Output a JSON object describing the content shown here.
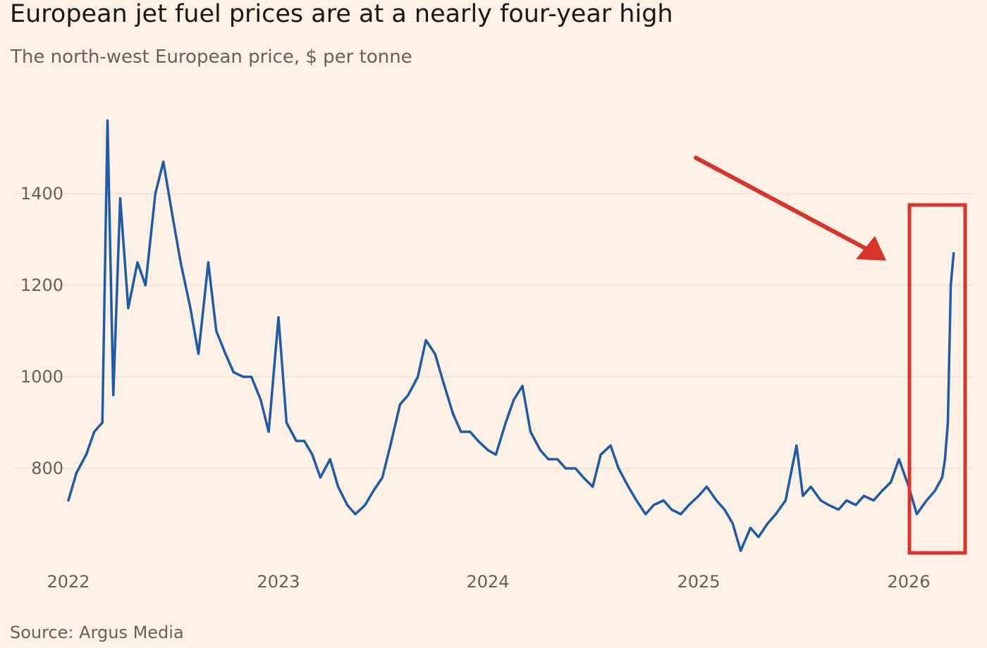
{
  "header": {
    "title": "European jet fuel prices are at a nearly four-year high",
    "subtitle": "The north-west European price, $ per tonne"
  },
  "footer": {
    "source": "Source: Argus Media"
  },
  "colors": {
    "background": "#fdf1e5",
    "line": "#1f5aa6",
    "annotation": "#d9342b",
    "gridline": "#efe2d5",
    "text": "#66605c"
  },
  "chart_data": {
    "type": "line",
    "title": "European jet fuel prices are at a nearly four-year high",
    "subtitle": "The north-west European price, $ per tonne",
    "xlabel": "",
    "ylabel": "",
    "x_ticks": [
      "2022",
      "2023",
      "2024",
      "2025",
      "2026"
    ],
    "y_ticks": [
      800,
      1000,
      1200,
      1400
    ],
    "xlim": [
      "2022-01-01",
      "2026-03-20"
    ],
    "ylim": [
      600,
      1600
    ],
    "grid": "horizontal",
    "legend": "none",
    "annotations": [
      {
        "type": "arrow",
        "color": "#d9342b",
        "points_to": "latest spike"
      },
      {
        "type": "box",
        "color": "#d9342b",
        "highlights": "2026 spike"
      }
    ],
    "series": [
      {
        "x": [
          "2022-01-01",
          "2022-01-15",
          "2022-02-01",
          "2022-02-15",
          "2022-03-01",
          "2022-03-10",
          "2022-03-20",
          "2022-04-01",
          "2022-04-15",
          "2022-05-01",
          "2022-05-15",
          "2022-06-01",
          "2022-06-15",
          "2022-07-01",
          "2022-07-15",
          "2022-08-01",
          "2022-08-15",
          "2022-09-01",
          "2022-09-15",
          "2022-10-01",
          "2022-10-15",
          "2022-11-01",
          "2022-11-15",
          "2022-12-01",
          "2022-12-15",
          "2023-01-01",
          "2023-01-15",
          "2023-02-01",
          "2023-02-15",
          "2023-03-01",
          "2023-03-15",
          "2023-04-01",
          "2023-04-15",
          "2023-05-01",
          "2023-05-15",
          "2023-06-01",
          "2023-06-15",
          "2023-07-01",
          "2023-07-15",
          "2023-08-01",
          "2023-08-15",
          "2023-09-01",
          "2023-09-15",
          "2023-10-01",
          "2023-10-15",
          "2023-11-01",
          "2023-11-15",
          "2023-12-01",
          "2023-12-15",
          "2024-01-01",
          "2024-01-15",
          "2024-02-01",
          "2024-02-15",
          "2024-03-01",
          "2024-03-15",
          "2024-04-01",
          "2024-04-15",
          "2024-05-01",
          "2024-05-15",
          "2024-06-01",
          "2024-06-15",
          "2024-07-01",
          "2024-07-15",
          "2024-08-01",
          "2024-08-15",
          "2024-09-01",
          "2024-09-15",
          "2024-10-01",
          "2024-10-15",
          "2024-11-01",
          "2024-11-15",
          "2024-12-01",
          "2024-12-15",
          "2025-01-01",
          "2025-01-15",
          "2025-02-01",
          "2025-02-15",
          "2025-03-01",
          "2025-03-15",
          "2025-04-01",
          "2025-04-15",
          "2025-05-01",
          "2025-05-15",
          "2025-06-01",
          "2025-06-20",
          "2025-07-01",
          "2025-07-15",
          "2025-08-01",
          "2025-08-15",
          "2025-09-01",
          "2025-09-15",
          "2025-10-01",
          "2025-10-15",
          "2025-11-01",
          "2025-11-15",
          "2025-12-01",
          "2025-12-15",
          "2026-01-01",
          "2026-01-15",
          "2026-02-01",
          "2026-02-15",
          "2026-02-28",
          "2026-03-05",
          "2026-03-10",
          "2026-03-15",
          "2026-03-20"
        ],
        "values": [
          730,
          790,
          830,
          880,
          900,
          1560,
          960,
          1390,
          1150,
          1250,
          1200,
          1400,
          1470,
          1350,
          1250,
          1150,
          1050,
          1250,
          1100,
          1050,
          1010,
          1000,
          1000,
          950,
          880,
          1130,
          900,
          860,
          860,
          830,
          780,
          820,
          760,
          720,
          700,
          720,
          750,
          780,
          850,
          940,
          960,
          1000,
          1080,
          1050,
          990,
          920,
          880,
          880,
          860,
          840,
          830,
          900,
          950,
          980,
          880,
          840,
          820,
          820,
          800,
          800,
          780,
          760,
          830,
          850,
          800,
          760,
          730,
          700,
          720,
          730,
          710,
          700,
          720,
          740,
          760,
          730,
          710,
          680,
          620,
          670,
          650,
          680,
          700,
          730,
          850,
          740,
          760,
          730,
          720,
          710,
          730,
          720,
          740,
          730,
          750,
          770,
          820,
          760,
          700,
          730,
          750,
          780,
          820,
          900,
          1200,
          1270
        ]
      }
    ]
  }
}
